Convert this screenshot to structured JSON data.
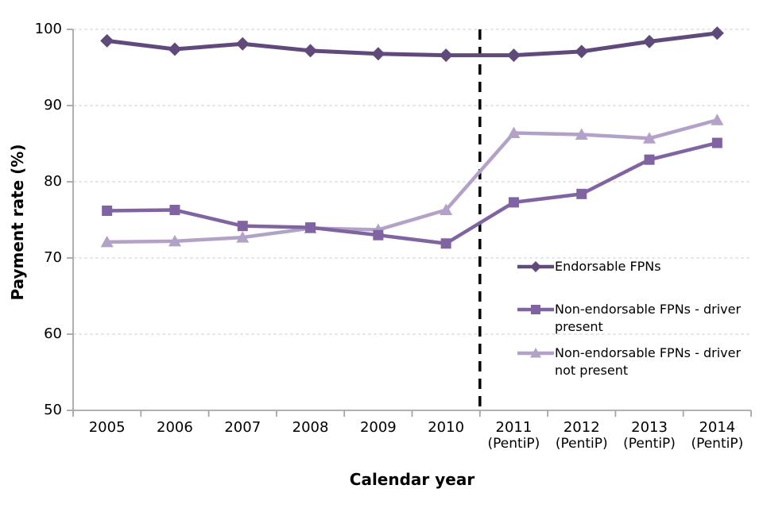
{
  "chart_data": {
    "type": "line",
    "title": "",
    "xlabel": "Calendar year",
    "ylabel": "Payment rate (%)",
    "ylim": [
      50,
      100
    ],
    "yticks": [
      50,
      60,
      70,
      80,
      90,
      100
    ],
    "grid": "horizontal dashed gridlines at 60-100",
    "legend_position": "inside right-middle, no border",
    "categories": [
      "2005",
      "2006",
      "2007",
      "2008",
      "2009",
      "2010",
      "2011",
      "2012",
      "2013",
      "2014"
    ],
    "category_sublabels": [
      "",
      "",
      "",
      "",
      "",
      "",
      "(PentiP)",
      "(PentiP)",
      "(PentiP)",
      "(PentiP)"
    ],
    "series": [
      {
        "name": "Endorsable FPNs",
        "legend_label": "Endorsable FPNs",
        "marker": "diamond",
        "color": "#604A7B",
        "values": [
          98.5,
          97.4,
          98.1,
          97.2,
          96.8,
          96.6,
          96.6,
          97.1,
          98.4,
          99.5
        ]
      },
      {
        "name": "Non-endorsable FPNs - driver present",
        "legend_label": "Non-endorsable FPNs - driver\npresent",
        "marker": "square",
        "color": "#8064A2",
        "values": [
          76.2,
          76.3,
          74.2,
          74.0,
          73.0,
          71.9,
          77.3,
          78.4,
          82.9,
          85.1
        ]
      },
      {
        "name": "Non-endorsable FPNs - driver not present",
        "legend_label": "Non-endorsable FPNs - driver\nnot present",
        "marker": "triangle",
        "color": "#B3A2C7",
        "values": [
          72.1,
          72.2,
          72.7,
          73.9,
          73.7,
          76.3,
          86.4,
          86.2,
          85.7,
          88.1
        ]
      }
    ],
    "divider": {
      "position": "between 2010 and 2011",
      "style": "dashed",
      "color": "#000000"
    },
    "axis_color": "#A6A6A6",
    "gridline_color": "#D9D9D9"
  }
}
